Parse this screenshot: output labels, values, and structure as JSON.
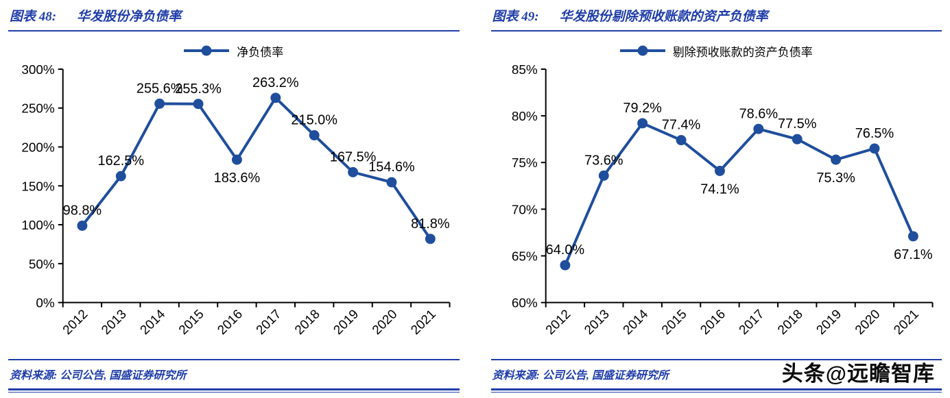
{
  "watermark": "头条@远瞻智库",
  "accent_color": "#1f3da8",
  "chart_data": [
    {
      "type": "line",
      "figure_label": "图表 48:",
      "title": "华发股份净负债率",
      "legend": "净负债率",
      "source": "资料来源: 公司公告, 国盛证券研究所",
      "categories": [
        "2012",
        "2013",
        "2014",
        "2015",
        "2016",
        "2017",
        "2018",
        "2019",
        "2020",
        "2021"
      ],
      "values": [
        98.8,
        162.5,
        255.6,
        255.3,
        183.6,
        263.2,
        215.0,
        167.5,
        154.6,
        81.8
      ],
      "ylim": [
        0,
        300
      ],
      "yticks": [
        0,
        50,
        100,
        150,
        200,
        250,
        300
      ],
      "ytick_suffix": "%",
      "label_suffix": "%",
      "label_positions": [
        "above",
        "above",
        "above",
        "above",
        "below",
        "above",
        "above",
        "above",
        "above",
        "above"
      ],
      "line_color": "#1f4e9c",
      "grid": false,
      "legend_position": "top"
    },
    {
      "type": "line",
      "figure_label": "图表 49:",
      "title": "华发股份剔除预收账款的资产负债率",
      "legend": "剔除预收账款的资产负债率",
      "source": "资料来源: 公司公告, 国盛证券研究所",
      "categories": [
        "2012",
        "2013",
        "2014",
        "2015",
        "2016",
        "2017",
        "2018",
        "2019",
        "2020",
        "2021"
      ],
      "values": [
        64.0,
        73.6,
        79.2,
        77.4,
        74.1,
        78.6,
        77.5,
        75.3,
        76.5,
        67.1
      ],
      "ylim": [
        60,
        85
      ],
      "yticks": [
        60,
        65,
        70,
        75,
        80,
        85
      ],
      "ytick_suffix": "%",
      "label_suffix": "%",
      "label_positions": [
        "above",
        "above",
        "above",
        "above",
        "below",
        "above",
        "above",
        "below",
        "above",
        "below"
      ],
      "line_color": "#1f4e9c",
      "grid": false,
      "legend_position": "top"
    }
  ]
}
